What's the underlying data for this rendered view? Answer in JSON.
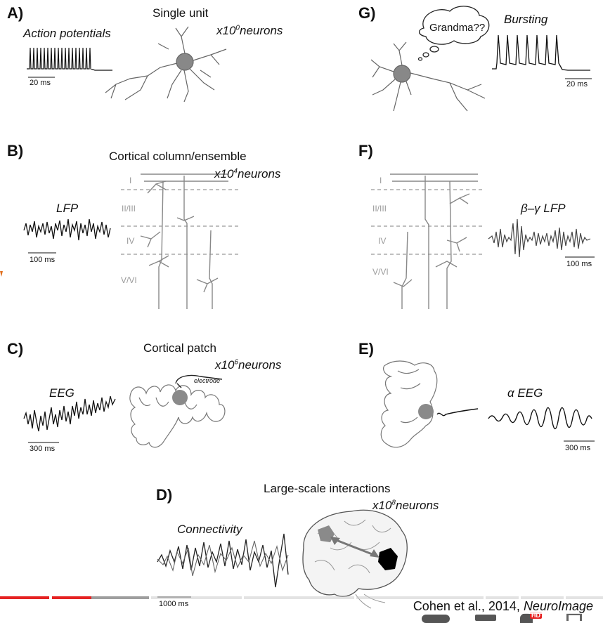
{
  "panels": {
    "A": {
      "letter": "A)",
      "title": "Single unit",
      "scale_neurons": "x10",
      "exp": "0",
      "unit": "neurons",
      "signal": "Action potentials",
      "scalebar": "20 ms"
    },
    "B": {
      "letter": "B)",
      "title": "Cortical column/ensemble",
      "scale_neurons": "x10",
      "exp": "4",
      "unit": "neurons",
      "signal": "LFP",
      "scalebar": "100 ms",
      "layers": [
        "I",
        "II/III",
        "IV",
        "V/VI"
      ]
    },
    "C": {
      "letter": "C)",
      "title": "Cortical patch",
      "scale_neurons": "x10",
      "exp": "6",
      "unit": "neurons",
      "signal": "EEG",
      "scalebar": "300 ms",
      "electrode": "electrode"
    },
    "D": {
      "letter": "D)",
      "title": "Large-scale interactions",
      "scale_neurons": "x10",
      "exp": "8",
      "unit": "neurons",
      "signal": "Connectivity",
      "scalebar": "1000 ms"
    },
    "E": {
      "letter": "E)",
      "signal": "α EEG",
      "scalebar": "300 ms"
    },
    "F": {
      "letter": "F)",
      "signal": "β–γ LFP",
      "scalebar": "100 ms",
      "layers": [
        "I",
        "II/III",
        "IV",
        "V/VI"
      ]
    },
    "G": {
      "letter": "G)",
      "signal": "Bursting",
      "bubble": "Grandma??",
      "scalebar": "20 ms"
    }
  },
  "citation": {
    "authors": "Cohen et al., 2014, ",
    "journal": "NeuroImage"
  },
  "player": {
    "badge": "HD",
    "progress": 0.15
  },
  "colors": {
    "progress": "#e52222",
    "loaded": "#9e9e9e",
    "trace": "#111111",
    "neuron": "#555555",
    "gray_region": "#8a8a8a"
  }
}
